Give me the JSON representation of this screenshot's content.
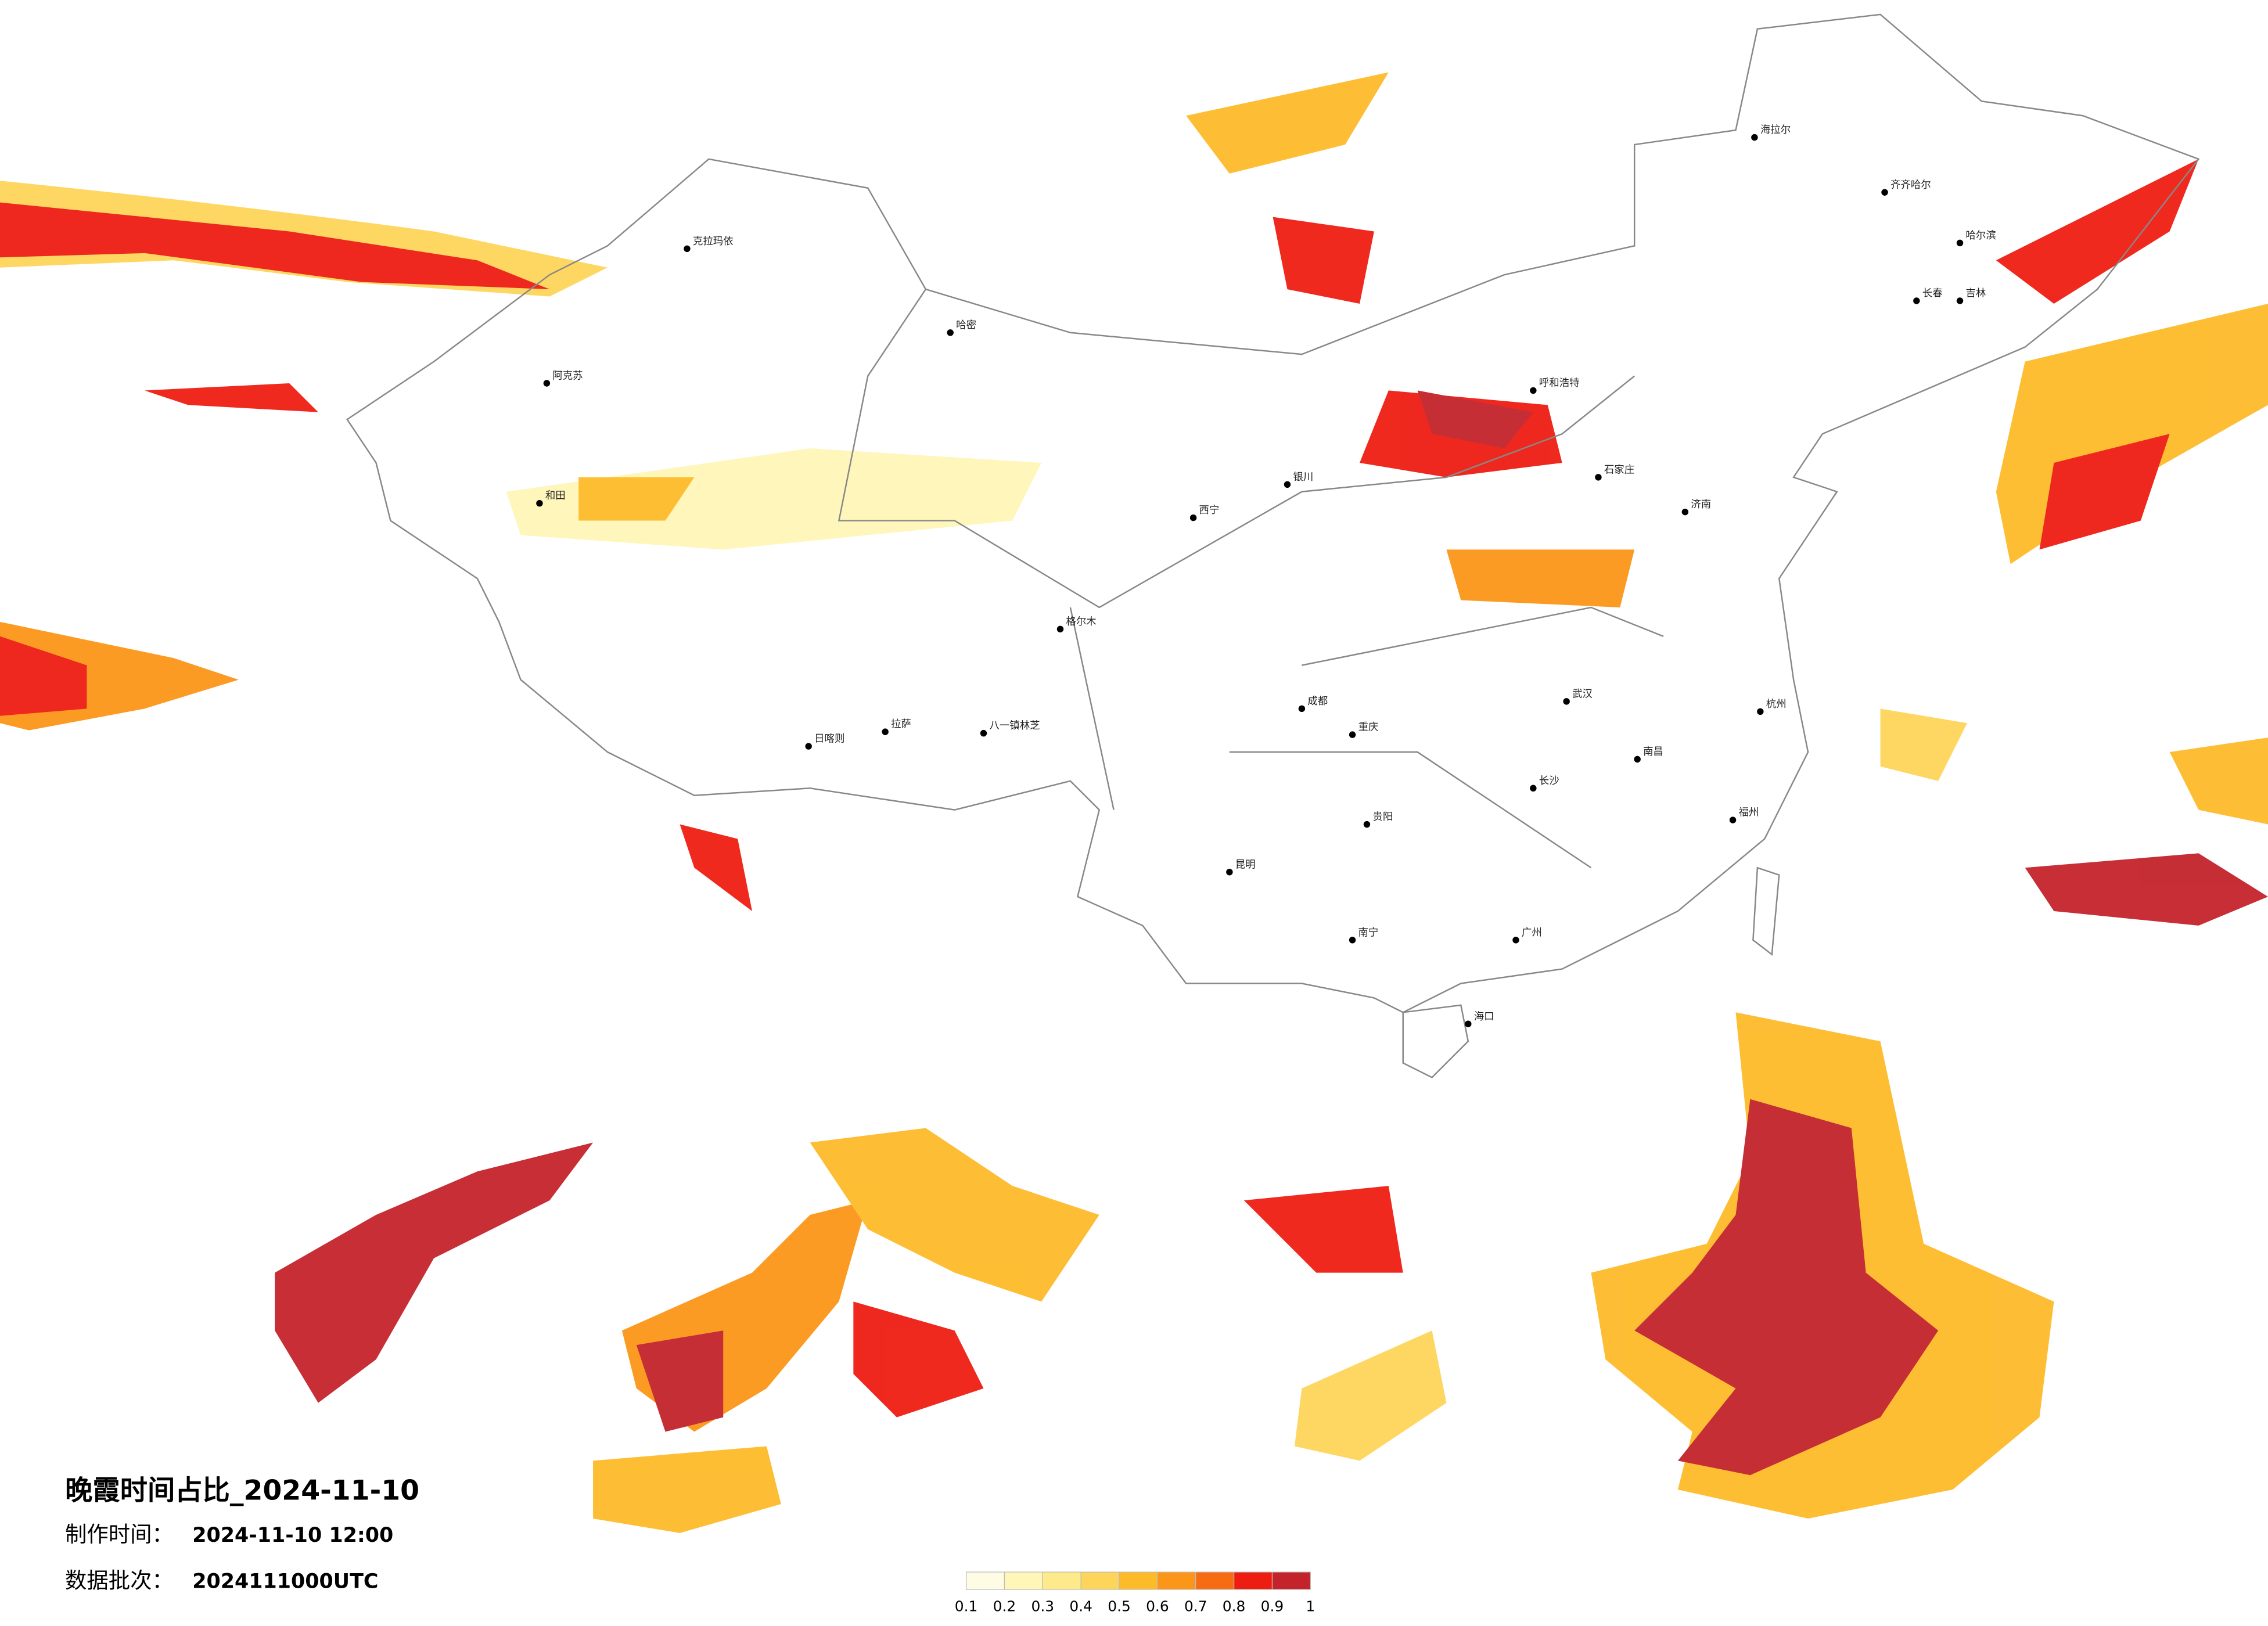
{
  "title": "晚霞时间占比_2024-11-10",
  "made": {
    "label": "制作时间：",
    "value": "2024-11-10 12:00"
  },
  "batch": {
    "label": "数据批次：",
    "value": "2024111000UTC"
  },
  "legend": {
    "ticks": [
      0.1,
      0.2,
      0.3,
      0.4,
      0.5,
      0.6,
      0.7,
      0.8,
      0.9,
      1
    ],
    "colors": [
      "#fffce6",
      "#fff6b8",
      "#feea8a",
      "#fdd55a",
      "#fdbb2a",
      "#fc9618",
      "#f76b12",
      "#ee1d12",
      "#c4232b"
    ]
  },
  "cities": [
    "海拉尔",
    "齐齐哈尔",
    "哈尔滨",
    "长春",
    "吉林",
    "克拉玛依",
    "哈密",
    "阿克苏",
    "和田",
    "格尔木",
    "拉萨",
    "日喀则",
    "八一镇林芝",
    "呼和浩特",
    "石家庄",
    "济南",
    "武汉",
    "长沙",
    "南昌",
    "重庆",
    "成都",
    "昆明",
    "贵阳",
    "南宁",
    "广州",
    "海口",
    "福州",
    "杭州",
    "西宁",
    "银川"
  ]
}
